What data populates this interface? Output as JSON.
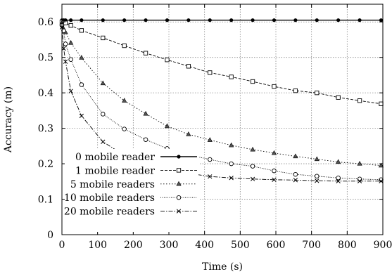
{
  "chart_data": {
    "type": "line",
    "xlabel": "Time (s)",
    "ylabel": "Accuracy (m)",
    "xlim": [
      0,
      900
    ],
    "ylim": [
      0,
      0.65
    ],
    "xticks": [
      0,
      100,
      200,
      300,
      400,
      500,
      600,
      700,
      800,
      900
    ],
    "yticks": [
      0,
      0.1,
      0.2,
      0.3,
      0.4,
      0.5,
      0.6
    ],
    "ytick_labels": [
      "0",
      "0.1",
      "0.2",
      "0.3",
      "0.4",
      "0.5",
      "0.6"
    ],
    "grid": true,
    "legend_position": "bottom-left",
    "series": [
      {
        "name": "0 mobile reader",
        "marker": "filled-circle",
        "dash": "solid",
        "x": [
          0,
          5,
          10,
          25,
          55,
          115,
          175,
          235,
          295,
          355,
          415,
          475,
          535,
          595,
          655,
          715,
          775,
          835,
          895
        ],
        "y": [
          0.605,
          0.605,
          0.605,
          0.605,
          0.605,
          0.605,
          0.605,
          0.605,
          0.605,
          0.605,
          0.605,
          0.605,
          0.605,
          0.605,
          0.605,
          0.605,
          0.605,
          0.605,
          0.605
        ]
      },
      {
        "name": "1 mobile reader",
        "marker": "square",
        "dash": "dashed",
        "x": [
          0,
          5,
          10,
          25,
          55,
          115,
          175,
          235,
          295,
          355,
          415,
          475,
          535,
          595,
          655,
          715,
          775,
          835,
          895
        ],
        "y": [
          0.6,
          0.598,
          0.597,
          0.59,
          0.576,
          0.555,
          0.533,
          0.512,
          0.493,
          0.475,
          0.457,
          0.445,
          0.432,
          0.418,
          0.406,
          0.4,
          0.387,
          0.378,
          0.369
        ]
      },
      {
        "name": "5 mobile readers",
        "marker": "triangle",
        "dash": "dotted",
        "x": [
          0,
          5,
          10,
          25,
          55,
          115,
          175,
          235,
          295,
          355,
          415,
          475,
          535,
          595,
          655,
          715,
          775,
          835,
          895
        ],
        "y": [
          0.597,
          0.58,
          0.571,
          0.541,
          0.499,
          0.427,
          0.378,
          0.341,
          0.306,
          0.283,
          0.267,
          0.252,
          0.24,
          0.23,
          0.221,
          0.213,
          0.205,
          0.2,
          0.195
        ]
      },
      {
        "name": "10 mobile readers",
        "marker": "open-circle",
        "dash": "dense-dotted",
        "x": [
          0,
          5,
          10,
          25,
          55,
          115,
          175,
          235,
          295,
          355,
          415,
          475,
          535,
          595,
          655,
          715,
          775,
          835,
          895
        ],
        "y": [
          0.59,
          0.575,
          0.538,
          0.494,
          0.423,
          0.34,
          0.298,
          0.268,
          0.243,
          0.225,
          0.212,
          0.2,
          0.193,
          0.18,
          0.17,
          0.165,
          0.16,
          0.157,
          0.155
        ]
      },
      {
        "name": "20 mobile readers",
        "marker": "cross",
        "dash": "dash-dot",
        "x": [
          0,
          5,
          10,
          25,
          55,
          115,
          175,
          235,
          295,
          355,
          415,
          475,
          535,
          595,
          655,
          715,
          775,
          835,
          895
        ],
        "y": [
          0.585,
          0.525,
          0.488,
          0.405,
          0.335,
          0.262,
          0.224,
          0.198,
          0.186,
          0.173,
          0.164,
          0.16,
          0.157,
          0.155,
          0.154,
          0.152,
          0.151,
          0.151,
          0.151
        ]
      }
    ]
  }
}
